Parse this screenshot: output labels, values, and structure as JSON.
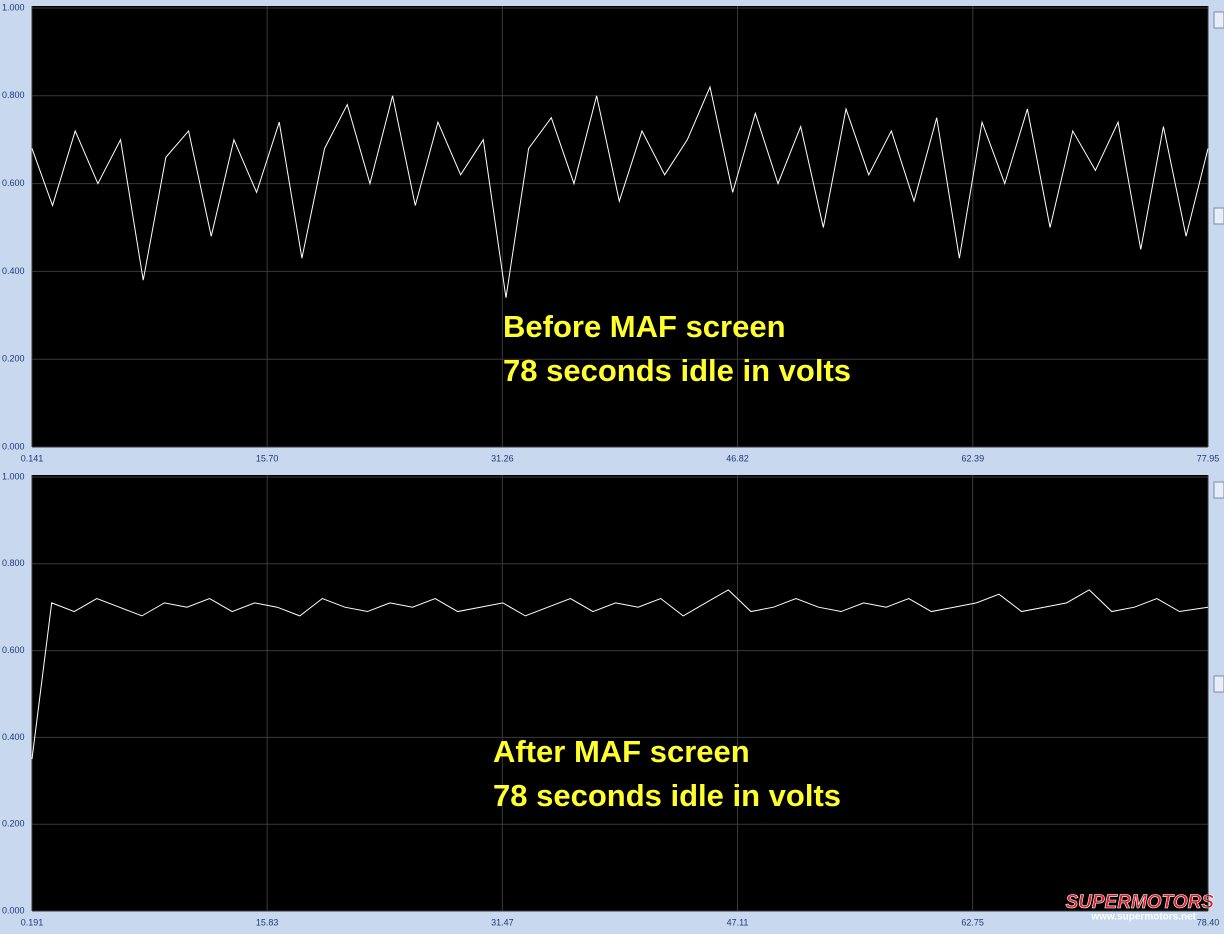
{
  "chart_data": [
    {
      "type": "line",
      "annotations": [
        "Before MAF screen",
        "78 seconds idle in volts"
      ],
      "x": [
        0.141,
        1.5,
        3,
        4.5,
        6,
        7.5,
        9,
        10.5,
        12,
        13.5,
        15,
        16.5,
        18,
        19.5,
        21,
        22.5,
        24,
        25.5,
        27,
        28.5,
        30,
        31.5,
        33,
        34.5,
        36,
        37.5,
        39,
        40.5,
        42,
        43.5,
        45,
        46.5,
        48,
        49.5,
        51,
        52.5,
        54,
        55.5,
        57,
        58.5,
        60,
        61.5,
        63,
        64.5,
        66,
        67.5,
        69,
        70.5,
        72,
        73.5,
        75,
        76.5,
        77.95
      ],
      "series": [
        {
          "color": "#ffffff",
          "values": [
            0.68,
            0.55,
            0.72,
            0.6,
            0.7,
            0.38,
            0.66,
            0.72,
            0.48,
            0.7,
            0.58,
            0.74,
            0.43,
            0.68,
            0.78,
            0.6,
            0.8,
            0.55,
            0.74,
            0.62,
            0.7,
            0.34,
            0.68,
            0.75,
            0.6,
            0.8,
            0.56,
            0.72,
            0.62,
            0.7,
            0.82,
            0.58,
            0.76,
            0.6,
            0.73,
            0.5,
            0.77,
            0.62,
            0.72,
            0.56,
            0.75,
            0.43,
            0.74,
            0.6,
            0.77,
            0.5,
            0.72,
            0.63,
            0.74,
            0.45,
            0.73,
            0.48,
            0.68
          ]
        }
      ],
      "xlim": [
        0.141,
        77.95
      ],
      "xticks": [
        0.141,
        {
          "value": 15.7,
          "label": "15.70"
        },
        31.26,
        46.82,
        62.39,
        77.95
      ],
      "ylim": [
        0,
        1
      ],
      "yticks": [
        {
          "value": 0,
          "label": "0.000"
        },
        {
          "value": 0.2,
          "label": "0.200"
        },
        {
          "value": 0.4,
          "label": "0.400"
        },
        {
          "value": 0.6,
          "label": "0.600"
        },
        {
          "value": 0.8,
          "label": "0.800"
        },
        {
          "value": 1,
          "label": "1.000"
        }
      ],
      "grid": true
    },
    {
      "type": "line",
      "annotations": [
        "After MAF screen",
        "78 seconds idle in volts"
      ],
      "x": [
        0.191,
        1.5,
        3,
        4.5,
        6,
        7.5,
        9,
        10.5,
        12,
        13.5,
        15,
        16.5,
        18,
        19.5,
        21,
        22.5,
        24,
        25.5,
        27,
        28.5,
        30,
        31.5,
        33,
        34.5,
        36,
        37.5,
        39,
        40.5,
        42,
        43.5,
        45,
        46.5,
        48,
        49.5,
        51,
        52.5,
        54,
        55.5,
        57,
        58.5,
        60,
        61.5,
        63,
        64.5,
        66,
        67.5,
        69,
        70.5,
        72,
        73.5,
        75,
        76.5,
        78.4
      ],
      "series": [
        {
          "color": "#ffffff",
          "values": [
            0.35,
            0.71,
            0.69,
            0.72,
            0.7,
            0.68,
            0.71,
            0.7,
            0.72,
            0.69,
            0.71,
            0.7,
            0.68,
            0.72,
            0.7,
            0.69,
            0.71,
            0.7,
            0.72,
            0.69,
            0.7,
            0.71,
            0.68,
            0.7,
            0.72,
            0.69,
            0.71,
            0.7,
            0.72,
            0.68,
            0.71,
            0.74,
            0.69,
            0.7,
            0.72,
            0.7,
            0.69,
            0.71,
            0.7,
            0.72,
            0.69,
            0.7,
            0.71,
            0.73,
            0.69,
            0.7,
            0.71,
            0.74,
            0.69,
            0.7,
            0.72,
            0.69,
            0.7
          ]
        }
      ],
      "xlim": [
        0.191,
        78.4
      ],
      "xticks": [
        0.191,
        15.83,
        31.47,
        47.11,
        62.75,
        {
          "value": 78.4,
          "label": "78.40"
        }
      ],
      "ylim": [
        0,
        1
      ],
      "yticks": [
        {
          "value": 0,
          "label": "0.000"
        },
        {
          "value": 0.2,
          "label": "0.200"
        },
        {
          "value": 0.4,
          "label": "0.400"
        },
        {
          "value": 0.6,
          "label": "0.600"
        },
        {
          "value": 0.8,
          "label": "0.800"
        },
        {
          "value": 1,
          "label": "1.000"
        }
      ],
      "grid": true
    }
  ],
  "watermark": {
    "brand": "SUPERMOTORS",
    "url": "www.supermotors.net"
  }
}
